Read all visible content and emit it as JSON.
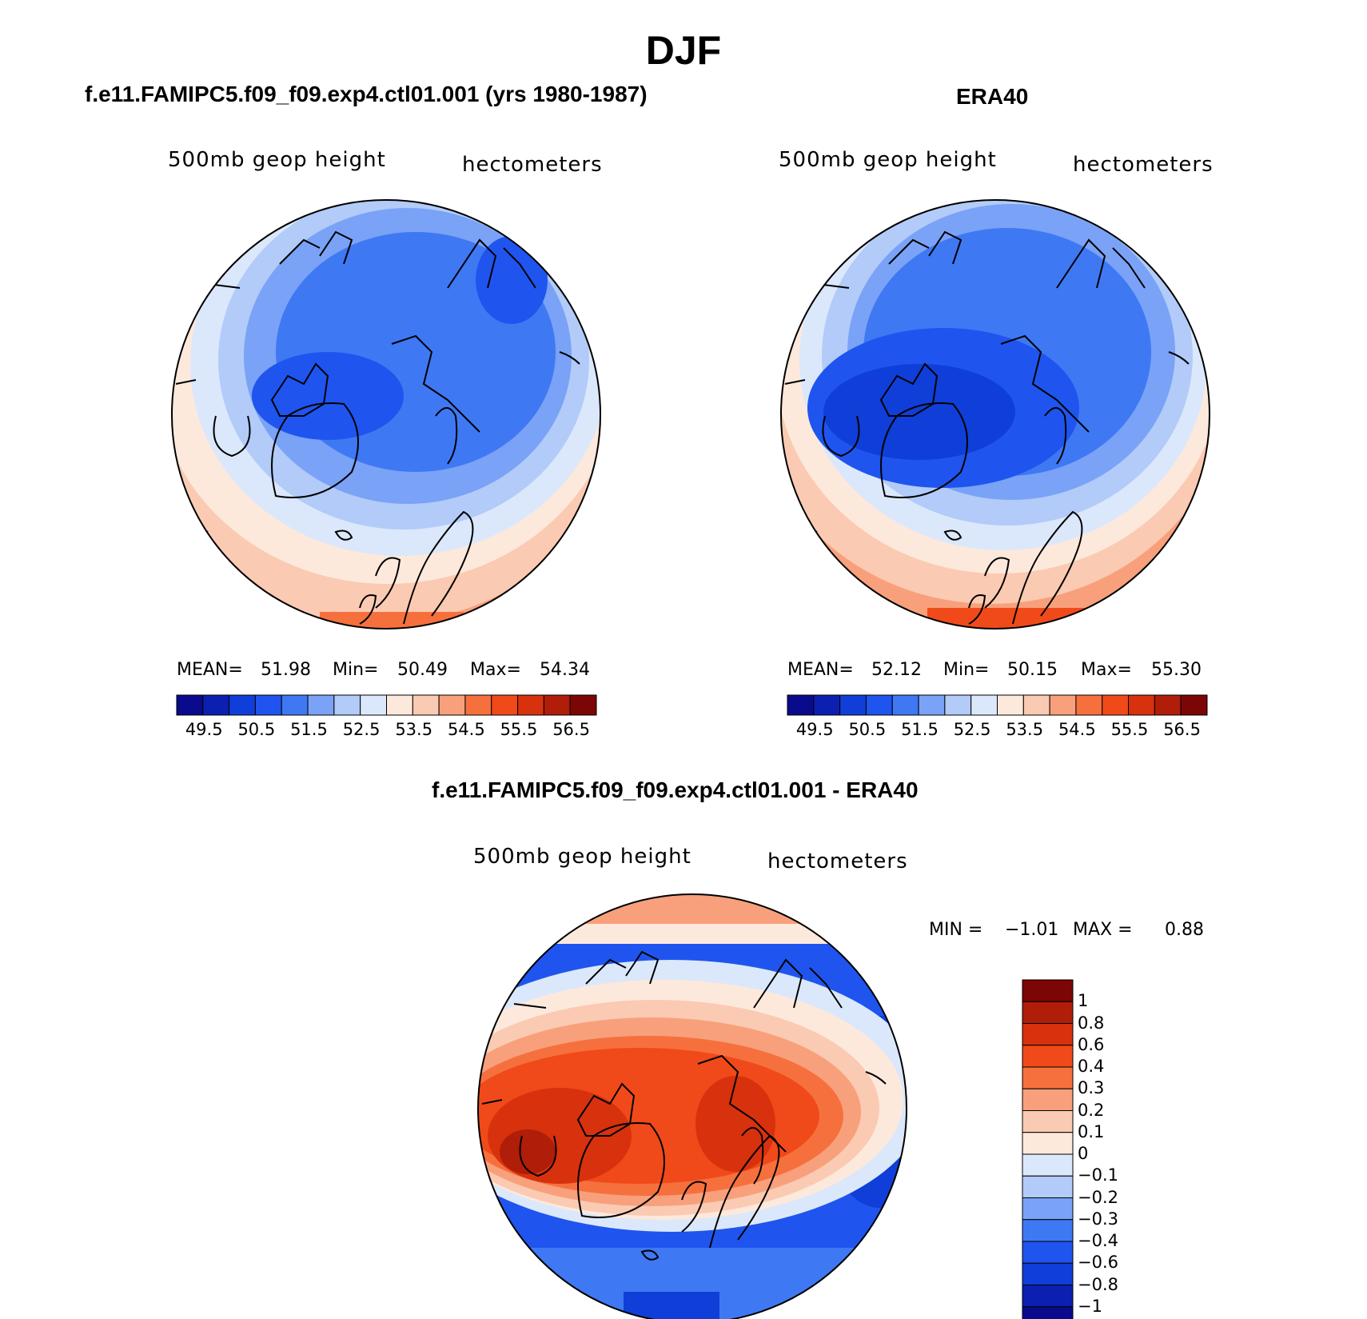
{
  "title": "DJF",
  "panels": [
    {
      "subtitle": "f.e11.FAMIPC5.f09_f09.exp4.ctl01.001 (yrs 1980-1987)",
      "left_label": "500mb geop height",
      "right_label": "hectometers",
      "stats": {
        "mean_label": "MEAN=",
        "mean": "51.98",
        "min_label": "Min=",
        "min": "50.49",
        "max_label": "Max=",
        "max": "54.34"
      },
      "colorbar_ticks": [
        "49.5",
        "50.5",
        "51.5",
        "52.5",
        "53.5",
        "54.5",
        "55.5",
        "56.5"
      ]
    },
    {
      "subtitle": "ERA40",
      "left_label": "500mb geop height",
      "right_label": "hectometers",
      "stats": {
        "mean_label": "MEAN=",
        "mean": "52.12",
        "min_label": "Min=",
        "min": "50.15",
        "max_label": "Max=",
        "max": "55.30"
      },
      "colorbar_ticks": [
        "49.5",
        "50.5",
        "51.5",
        "52.5",
        "53.5",
        "54.5",
        "55.5",
        "56.5"
      ]
    },
    {
      "subtitle": "f.e11.FAMIPC5.f09_f09.exp4.ctl01.001 - ERA40",
      "left_label": "500mb geop height",
      "right_label": "hectometers",
      "stats": {
        "min_label": "MIN =",
        "min": "−1.01",
        "max_label": "MAX =",
        "max": "0.88"
      },
      "colorbar_ticks": [
        "1",
        "0.8",
        "0.6",
        "0.4",
        "0.3",
        "0.2",
        "0.1",
        "0",
        "−0.1",
        "−0.2",
        "−0.3",
        "−0.4",
        "−0.6",
        "−0.8",
        "−1"
      ]
    }
  ],
  "colors": {
    "height_palette": [
      "#0a0a8c",
      "#0b1fb0",
      "#0f3fd8",
      "#1f55ee",
      "#3f78f3",
      "#7aa2f6",
      "#b2cbf8",
      "#dbe8fb",
      "#fde9dc",
      "#fbcab2",
      "#f8a07c",
      "#f6703e",
      "#f04a1a",
      "#d8310e",
      "#b01d08",
      "#7c0505"
    ],
    "diff_palette": [
      "#0a0a8c",
      "#0b1fb0",
      "#0f3fd8",
      "#1f55ee",
      "#3f78f3",
      "#7aa2f6",
      "#b2cbf8",
      "#dbe8fb",
      "#fde9dc",
      "#fbcab2",
      "#f8a07c",
      "#f6703e",
      "#f04a1a",
      "#d8310e",
      "#b01d08",
      "#7c0505"
    ]
  }
}
